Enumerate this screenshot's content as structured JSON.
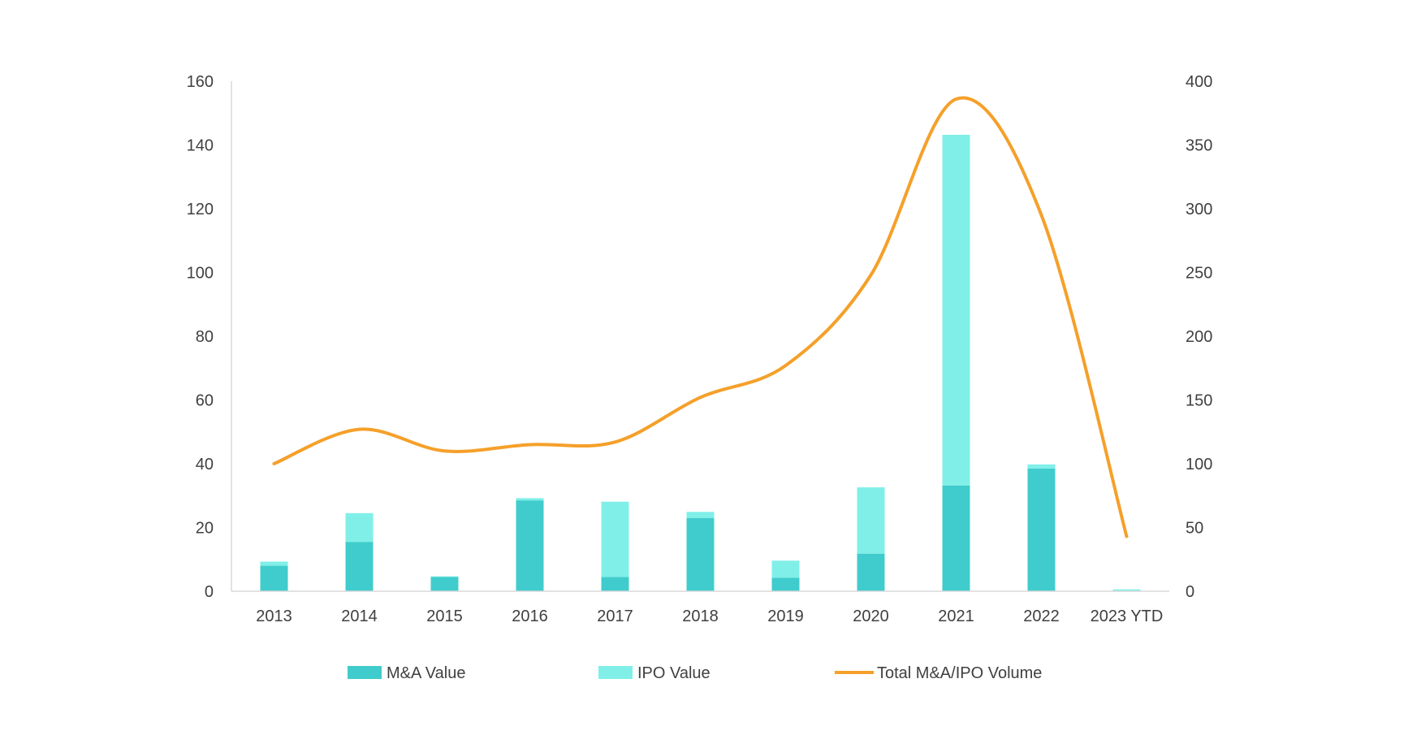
{
  "chart_data": {
    "type": "bar",
    "stacked": true,
    "categories": [
      "2013",
      "2014",
      "2015",
      "2016",
      "2017",
      "2018",
      "2019",
      "2020",
      "2021",
      "2022",
      "2023 YTD"
    ],
    "series": [
      {
        "name": "M&A Value",
        "type": "bar",
        "axis": "left",
        "color": "#40CCCC",
        "values": [
          8,
          15.5,
          4.5,
          28.5,
          4.5,
          23,
          4.2,
          11.8,
          33.2,
          38.5,
          0
        ]
      },
      {
        "name": "IPO Value",
        "type": "bar",
        "axis": "left",
        "color": "#80EFE8",
        "values": [
          1.3,
          9,
          0.2,
          0.7,
          23.6,
          1.9,
          5.4,
          20.8,
          110,
          1.3,
          0.6
        ]
      },
      {
        "name": "Total M&A/IPO Volume",
        "type": "line",
        "axis": "right",
        "color": "#F5A02A",
        "smooth": true,
        "values": [
          100,
          127,
          110,
          115,
          117,
          152,
          177,
          248,
          386,
          295,
          43
        ]
      }
    ],
    "yleft": {
      "ylim": [
        0,
        160
      ],
      "ticks": [
        "0",
        "20",
        "40",
        "60",
        "80",
        "100",
        "120",
        "140",
        "160"
      ]
    },
    "yright": {
      "ylim": [
        0,
        400
      ],
      "ticks": [
        "0",
        "50",
        "100",
        "150",
        "200",
        "250",
        "300",
        "350",
        "400"
      ]
    },
    "grid": false,
    "legend_position": "bottom"
  }
}
